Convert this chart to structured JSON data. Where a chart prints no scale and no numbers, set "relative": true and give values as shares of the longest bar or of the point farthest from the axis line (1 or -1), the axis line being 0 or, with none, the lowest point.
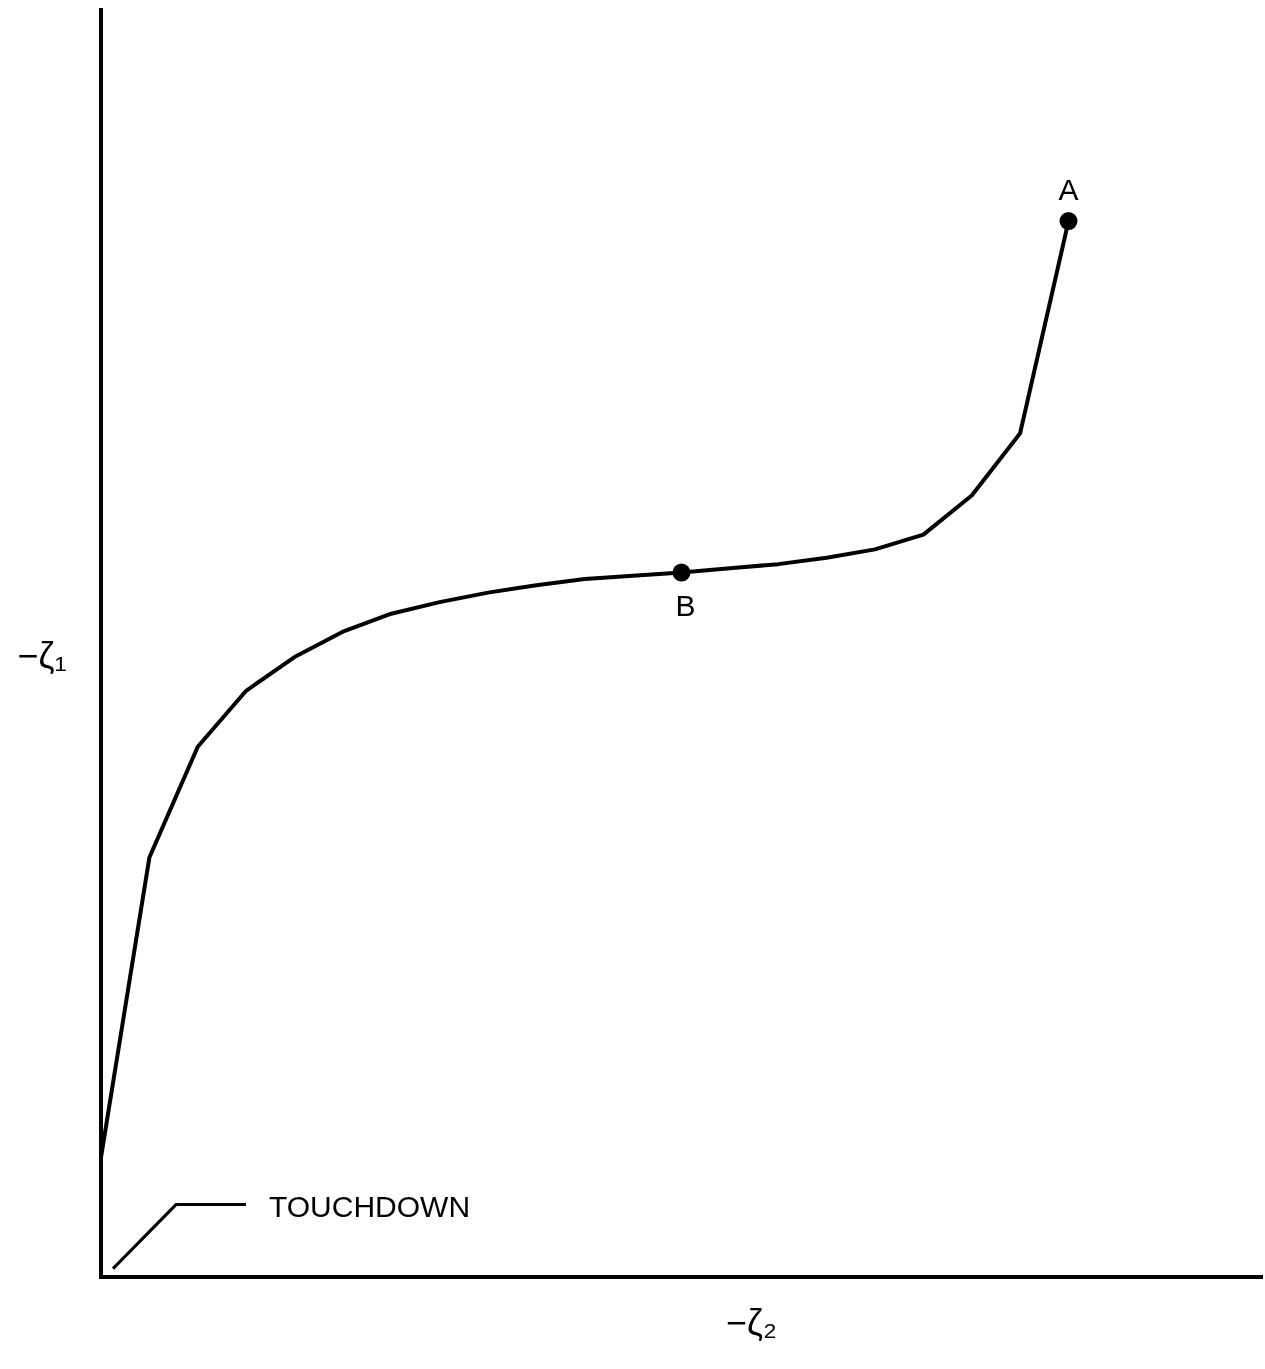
{
  "chart_data": {
    "type": "line",
    "relative": true,
    "xlabel": "−ζ₂",
    "ylabel": "−ζ₁",
    "line_style": "solid",
    "grid": false,
    "legend": false,
    "categories": [
      null,
      null,
      null,
      null,
      null,
      null,
      null,
      null,
      null,
      null,
      null,
      null,
      null,
      null,
      null,
      null,
      null,
      null,
      null,
      null,
      null,
      null,
      null,
      null,
      null
    ],
    "series": [
      {
        "color": "#000000",
        "values": [
          0.113,
          0.397,
          0.502,
          0.555,
          0.587,
          0.611,
          0.628,
          0.639,
          0.648,
          0.655,
          0.661,
          0.664,
          0.667,
          0.671,
          0.675,
          0.681,
          0.689,
          0.703,
          0.74,
          0.799,
          1,
          null,
          null,
          null,
          null
        ]
      }
    ],
    "annotations": [
      {
        "text": "A",
        "y": 1
      },
      {
        "text": "B",
        "y": 0.667
      },
      "TOUCHDOWN"
    ]
  }
}
